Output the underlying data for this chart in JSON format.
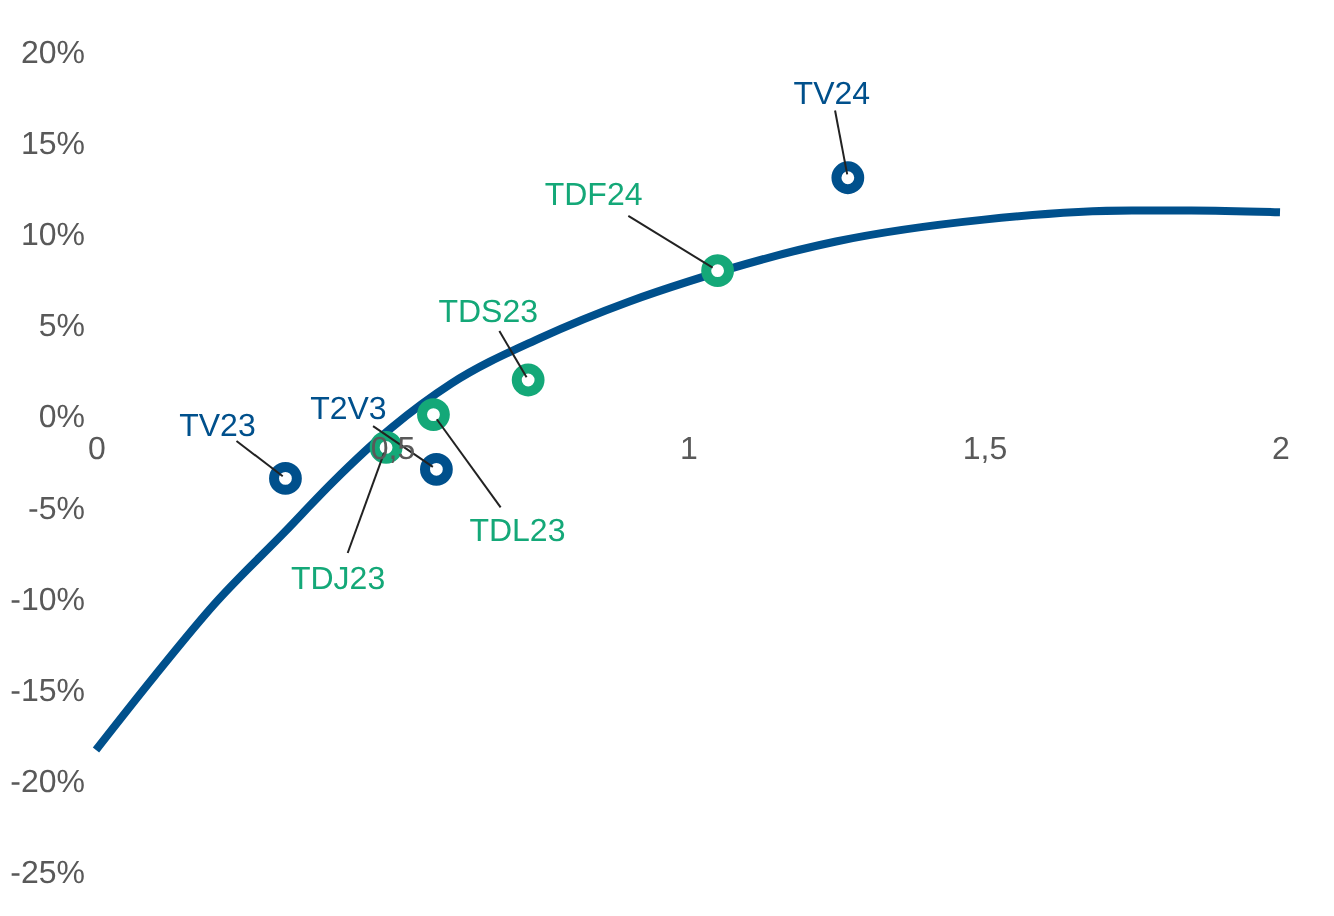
{
  "chart_data": {
    "type": "scatter",
    "series": [
      {
        "type": "line",
        "marker": "none",
        "color": "#00508c",
        "x": [
          0,
          0.1,
          0.2,
          0.32,
          0.4,
          0.5,
          0.6,
          0.75,
          0.9,
          1.0,
          1.25,
          1.5,
          1.75,
          1.85,
          2.0
        ],
        "values": [
          -18.3,
          -14.2,
          -10.3,
          -6.3,
          -3.6,
          -0.6,
          1.8,
          4.3,
          6.3,
          7.4,
          9.6,
          10.8,
          11.3,
          11.3,
          11.2
        ]
      },
      {
        "color": "#00508c",
        "x": [
          0.32,
          0.575,
          1.27
        ],
        "values": [
          -3.4,
          -2.9,
          13.1
        ]
      },
      {
        "color": "#14a878",
        "x": [
          0.49,
          0.57,
          0.73,
          1.05
        ],
        "values": [
          -1.7,
          0.1,
          2.0,
          8.0
        ]
      }
    ],
    "annotations": [
      {
        "text": "TV23",
        "x": 0.32,
        "y": -3.4
      },
      {
        "text": "T2V3",
        "x": 0.575,
        "y": -2.9
      },
      {
        "text": "TV24",
        "x": 1.27,
        "y": 13.1
      },
      {
        "text": "TDJ23",
        "x": 0.49,
        "y": -1.7
      },
      {
        "text": "TDL23",
        "x": 0.57,
        "y": 0.1
      },
      {
        "text": "TDS23",
        "x": 0.73,
        "y": 2.0
      },
      {
        "text": "TDF24",
        "x": 1.05,
        "y": 8.0
      }
    ],
    "xlim": [
      0,
      2
    ],
    "xticks": [
      0,
      {
        "value": 0.5,
        "label": "0,5"
      },
      1,
      {
        "value": 1.5,
        "label": "1,5"
      },
      2
    ],
    "ylim": [
      -25,
      20
    ],
    "yticks": [
      {
        "value": 20,
        "label": "20%"
      },
      {
        "value": 15,
        "label": "15%"
      },
      {
        "value": 10,
        "label": "10%"
      },
      {
        "value": 5,
        "label": "5%"
      },
      {
        "value": 0,
        "label": "0%"
      },
      {
        "value": -5,
        "label": "-5%"
      },
      {
        "value": -10,
        "label": "-10%"
      },
      {
        "value": -15,
        "label": "-15%"
      },
      {
        "value": -20,
        "label": "-20%"
      },
      {
        "value": -25,
        "label": "-25%"
      }
    ],
    "marker": "circle",
    "grid": false
  }
}
